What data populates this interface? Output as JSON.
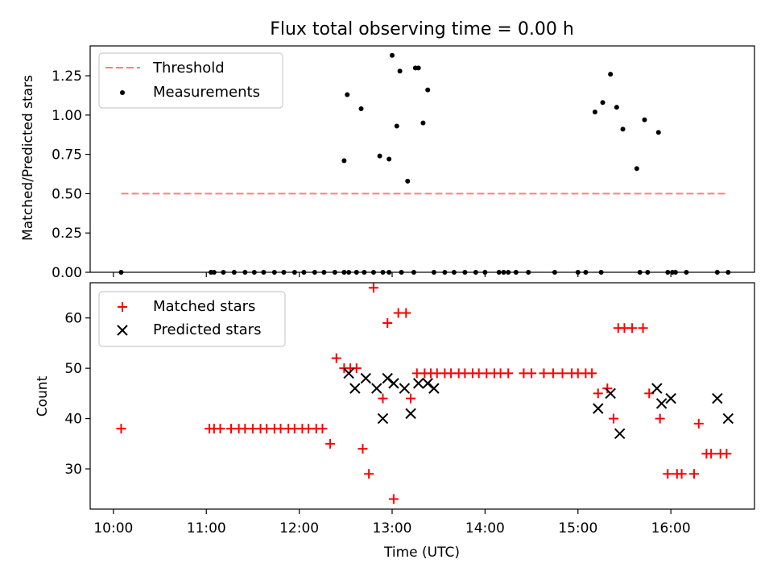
{
  "chart_data": [
    {
      "type": "scatter",
      "title": "Flux total observing time = 0.00 h",
      "xlabel": "",
      "ylabel": "Matched/Predicted stars",
      "ylim": [
        0,
        1.44
      ],
      "yticks": [
        "0.00",
        "0.25",
        "0.50",
        "0.75",
        "1.00",
        "1.25"
      ],
      "yticks_values": [
        0,
        0.25,
        0.5,
        0.75,
        1.0,
        1.25
      ],
      "legend": {
        "position": "upper-left",
        "entries": [
          "Threshold",
          "Measurements"
        ]
      },
      "series": [
        {
          "name": "Threshold",
          "kind": "dashed-line",
          "color": "#ff7f7f",
          "x": [
            "10:05",
            "16:35"
          ],
          "y": [
            0.5,
            0.5
          ]
        },
        {
          "name": "Measurements",
          "kind": "dots",
          "color": "#000000",
          "x": [
            "10:05",
            "11:03",
            "11:05",
            "11:11",
            "11:18",
            "11:25",
            "11:31",
            "11:37",
            "11:44",
            "11:50",
            "11:57",
            "12:03",
            "12:10",
            "12:16",
            "12:23",
            "12:29",
            "12:32",
            "12:37",
            "12:42",
            "12:48",
            "12:54",
            "12:58",
            "13:06",
            "13:14",
            "13:27",
            "13:34",
            "13:40",
            "13:47",
            "13:54",
            "14:00",
            "14:09",
            "14:12",
            "14:15",
            "14:20",
            "14:28",
            "14:45",
            "15:00",
            "15:05",
            "15:15",
            "15:40",
            "15:45",
            "16:03",
            "16:10",
            "16:30",
            "16:37",
            "12:29",
            "12:31",
            "12:40",
            "12:52",
            "12:58",
            "12:60",
            "13:03",
            "13:05",
            "13:10",
            "13:15",
            "13:17",
            "13:20",
            "13:23",
            "15:11",
            "15:16",
            "15:21",
            "15:25",
            "15:29",
            "15:38",
            "15:43",
            "15:52",
            "15:58",
            "16:01"
          ],
          "y": [
            0,
            0,
            0,
            0,
            0,
            0,
            0,
            0,
            0,
            0,
            0,
            0,
            0,
            0,
            0,
            0,
            0,
            0,
            0,
            0,
            0,
            0,
            0,
            0,
            0,
            0,
            0,
            0,
            0,
            0,
            0,
            0,
            0,
            0,
            0,
            0,
            0,
            0,
            0,
            0,
            0,
            0,
            0,
            0,
            0,
            0.71,
            1.13,
            1.04,
            0.74,
            0.72,
            1.38,
            0.93,
            1.28,
            0.58,
            1.3,
            1.3,
            0.95,
            1.16,
            1.02,
            1.08,
            1.26,
            1.05,
            0.91,
            0.66,
            0.97,
            0.89,
            0,
            0
          ]
        }
      ]
    },
    {
      "type": "scatter",
      "xlabel": "Time (UTC)",
      "ylabel": "Count",
      "xticks": [
        "10:00",
        "11:00",
        "12:00",
        "13:00",
        "14:00",
        "15:00",
        "16:00"
      ],
      "ylim": [
        22,
        67
      ],
      "yticks": [
        "30",
        "40",
        "50",
        "60"
      ],
      "yticks_values": [
        30,
        40,
        50,
        60
      ],
      "legend": {
        "position": "upper-left",
        "entries": [
          "Matched stars",
          "Predicted stars"
        ]
      },
      "series": [
        {
          "name": "Matched stars",
          "marker": "plus",
          "color": "#ff0000",
          "x": [
            "10:05",
            "11:02",
            "11:05",
            "11:09",
            "11:16",
            "11:21",
            "11:25",
            "11:30",
            "11:35",
            "11:39",
            "11:44",
            "11:48",
            "11:53",
            "11:57",
            "12:02",
            "12:06",
            "12:11",
            "12:15",
            "12:20",
            "12:24",
            "12:29",
            "12:33",
            "12:37",
            "12:41",
            "12:45",
            "12:48",
            "12:54",
            "12:57",
            "13:01",
            "13:04",
            "13:09",
            "13:12",
            "13:16",
            "13:21",
            "13:25",
            "13:29",
            "13:34",
            "13:38",
            "13:43",
            "13:47",
            "13:52",
            "13:56",
            "14:01",
            "14:06",
            "14:10",
            "14:15",
            "14:25",
            "14:30",
            "14:38",
            "14:44",
            "14:50",
            "14:56",
            "15:00",
            "15:05",
            "15:09",
            "15:13",
            "15:19",
            "15:23",
            "15:26",
            "15:30",
            "15:35",
            "15:42",
            "15:46",
            "15:53",
            "15:58",
            "16:04",
            "16:07",
            "16:15",
            "16:18",
            "16:23",
            "16:26",
            "16:32",
            "16:36"
          ],
          "y": [
            38,
            38,
            38,
            38,
            38,
            38,
            38,
            38,
            38,
            38,
            38,
            38,
            38,
            38,
            38,
            38,
            38,
            38,
            35,
            52,
            50,
            50,
            50,
            34,
            29,
            66,
            44,
            59,
            24,
            61,
            61,
            44,
            49,
            49,
            49,
            49,
            49,
            49,
            49,
            49,
            49,
            49,
            49,
            49,
            49,
            49,
            49,
            49,
            49,
            49,
            49,
            49,
            49,
            49,
            49,
            45,
            46,
            40,
            58,
            58,
            58,
            58,
            45,
            40,
            29,
            29,
            29,
            29,
            39,
            33,
            33,
            33,
            33
          ]
        },
        {
          "name": "Predicted stars",
          "marker": "x",
          "color": "#000000",
          "x": [
            "12:32",
            "12:36",
            "12:43",
            "12:50",
            "12:54",
            "12:57",
            "13:01",
            "13:08",
            "13:12",
            "13:17",
            "13:23",
            "13:27",
            "15:13",
            "15:21",
            "15:27",
            "15:51",
            "15:54",
            "16:00",
            "16:30",
            "16:37"
          ],
          "y": [
            49,
            46,
            48,
            46,
            40,
            48,
            47,
            46,
            41,
            47,
            47,
            46,
            42,
            45,
            37,
            46,
            43,
            44,
            44,
            40
          ]
        }
      ]
    }
  ]
}
